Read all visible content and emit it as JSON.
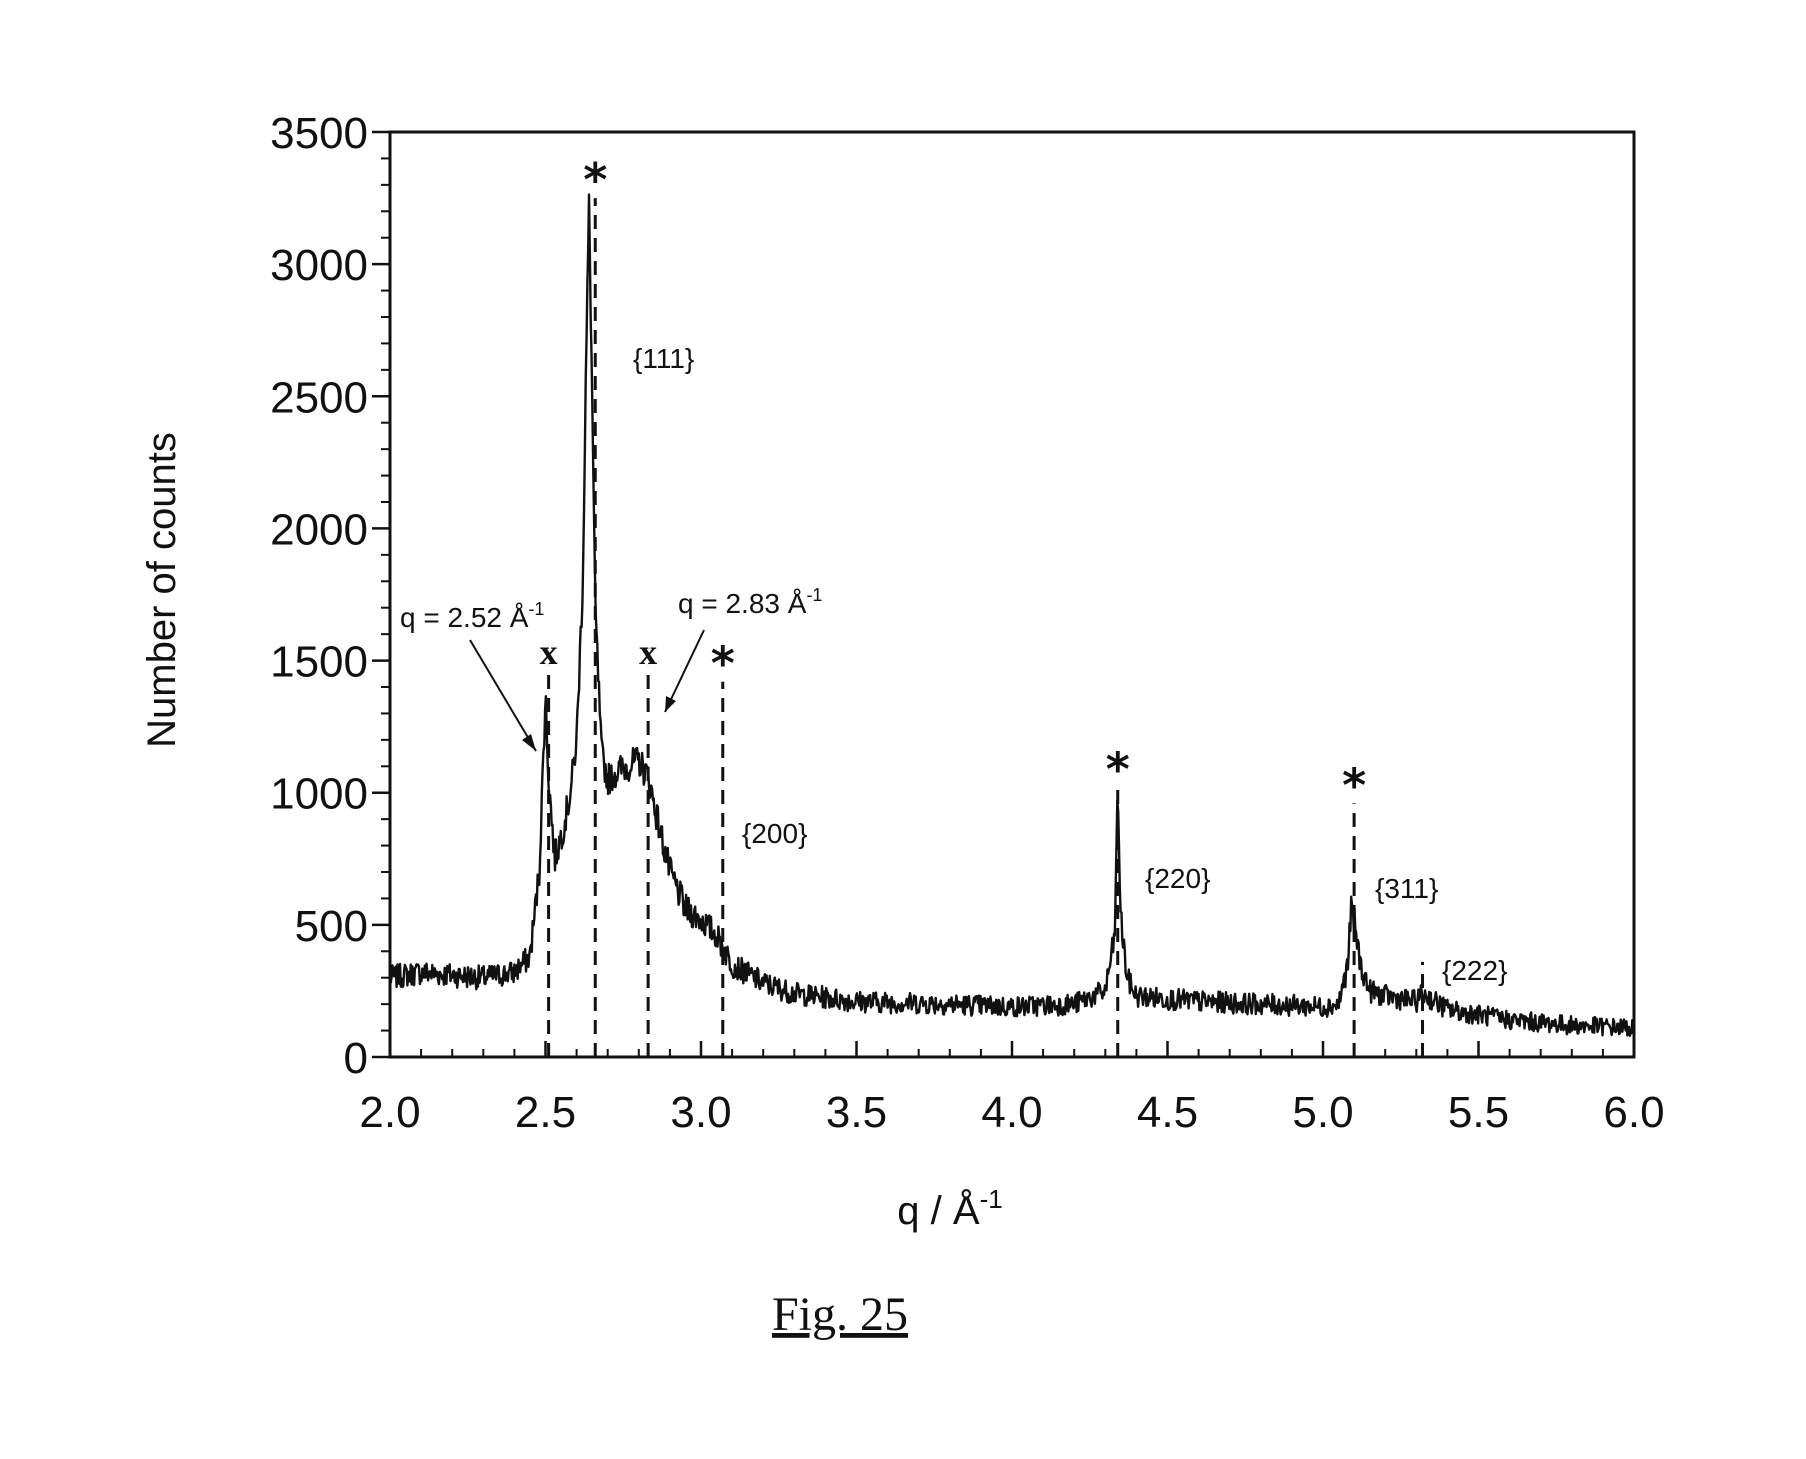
{
  "figure_caption": "Fig. 25",
  "chart_data": {
    "type": "line",
    "xlabel": "q / Å",
    "xlabel_sup": "-1",
    "ylabel": "Number of counts",
    "xlim": [
      2.0,
      6.0
    ],
    "ylim": [
      0,
      3500
    ],
    "x_ticks": [
      "2.0",
      "2.5",
      "3.0",
      "3.5",
      "4.0",
      "4.5",
      "5.0",
      "5.5",
      "6.0"
    ],
    "y_ticks": [
      "0",
      "500",
      "1000",
      "1500",
      "2000",
      "2500",
      "3000",
      "3500"
    ],
    "grid": false,
    "legend": "none",
    "series": [
      {
        "x": [
          2.0,
          2.1,
          2.2,
          2.3,
          2.4,
          2.45,
          2.48,
          2.5,
          2.51,
          2.53,
          2.56,
          2.58,
          2.6,
          2.62,
          2.63,
          2.64,
          2.65,
          2.66,
          2.68,
          2.7,
          2.73,
          2.76,
          2.8,
          2.83,
          2.86,
          2.9,
          2.95,
          3.0,
          3.05,
          3.1,
          3.2,
          3.3,
          3.5,
          3.8,
          4.0,
          4.2,
          4.3,
          4.33,
          4.34,
          4.35,
          4.37,
          4.4,
          4.6,
          4.8,
          5.0,
          5.05,
          5.08,
          5.09,
          5.1,
          5.12,
          5.15,
          5.2,
          5.3,
          5.32,
          5.4,
          5.6,
          5.8,
          6.0
        ],
        "values": [
          300,
          320,
          310,
          300,
          320,
          380,
          700,
          1370,
          1050,
          750,
          880,
          1000,
          1200,
          1800,
          2600,
          3220,
          2500,
          1700,
          1150,
          1050,
          1080,
          1100,
          1120,
          1060,
          900,
          700,
          560,
          520,
          460,
          350,
          280,
          240,
          210,
          200,
          190,
          200,
          250,
          450,
          1000,
          520,
          300,
          230,
          210,
          200,
          190,
          200,
          350,
          560,
          520,
          350,
          250,
          230,
          210,
          240,
          180,
          140,
          120,
          110
        ]
      }
    ],
    "reference_lines": [
      {
        "x": 2.51,
        "top": 1480,
        "marker": "x"
      },
      {
        "x": 2.66,
        "top": 3250,
        "marker": "*"
      },
      {
        "x": 2.83,
        "top": 1480,
        "marker": "x"
      },
      {
        "x": 3.07,
        "top": 1420,
        "marker": "*"
      },
      {
        "x": 4.34,
        "top": 1020,
        "marker": "*"
      },
      {
        "x": 5.1,
        "top": 960,
        "marker": "*"
      },
      {
        "x": 5.32,
        "top": 360,
        "marker": ""
      }
    ],
    "annotations": {
      "q1_text": "q = 2.52 Å",
      "q1_sup": "-1",
      "q2_text": "q = 2.83 Å",
      "q2_sup": "-1",
      "miller_111": "{111}",
      "miller_200": "{200}",
      "miller_220": "{220}",
      "miller_311": "{311}",
      "miller_222": "{222}"
    }
  }
}
